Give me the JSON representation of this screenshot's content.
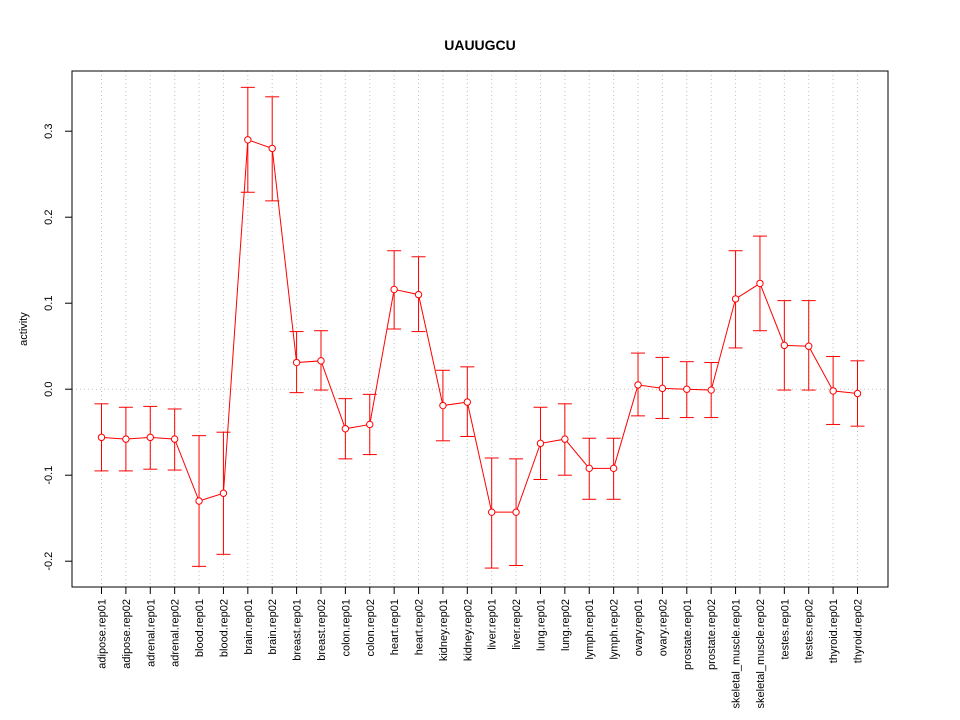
{
  "chart_data": {
    "type": "line",
    "title": "UAUUGCU",
    "xlabel": "",
    "ylabel": "activity",
    "ylim": [
      -0.23,
      0.37
    ],
    "y_ticks": [
      -0.2,
      -0.1,
      0.0,
      0.1,
      0.2,
      0.3
    ],
    "y_tick_labels": [
      "-0.2",
      "-0.1",
      "0.0",
      "0.1",
      "0.2",
      "0.3"
    ],
    "grid": true,
    "reference_line": 0.0,
    "series_color": "#ff0000",
    "grid_color": "#c0c0c0",
    "categories": [
      "adipose.rep01",
      "adipose.rep02",
      "adrenal.rep01",
      "adrenal.rep02",
      "blood.rep01",
      "blood.rep02",
      "brain.rep01",
      "brain.rep02",
      "breast.rep01",
      "breast.rep02",
      "colon.rep01",
      "colon.rep02",
      "heart.rep01",
      "heart.rep02",
      "kidney.rep01",
      "kidney.rep02",
      "liver.rep01",
      "liver.rep02",
      "lung.rep01",
      "lung.rep02",
      "lymph.rep01",
      "lymph.rep02",
      "ovary.rep01",
      "ovary.rep02",
      "prostate.rep01",
      "prostate.rep02",
      "skeletal_muscle.rep01",
      "skeletal_muscle.rep02",
      "testes.rep01",
      "testes.rep02",
      "thyroid.rep01",
      "thyroid.rep02"
    ],
    "values": [
      -0.056,
      -0.058,
      -0.056,
      -0.058,
      -0.13,
      -0.121,
      0.29,
      0.28,
      0.031,
      0.033,
      -0.046,
      -0.041,
      0.116,
      0.11,
      -0.019,
      -0.015,
      -0.143,
      -0.143,
      -0.063,
      -0.058,
      -0.092,
      -0.092,
      0.005,
      0.001,
      0.0,
      -0.001,
      0.105,
      0.123,
      0.051,
      0.05,
      -0.002,
      -0.005
    ],
    "lower": [
      -0.095,
      -0.095,
      -0.093,
      -0.094,
      -0.206,
      -0.192,
      0.229,
      0.219,
      -0.004,
      -0.001,
      -0.081,
      -0.076,
      0.07,
      0.067,
      -0.06,
      -0.055,
      -0.208,
      -0.205,
      -0.105,
      -0.1,
      -0.128,
      -0.128,
      -0.031,
      -0.034,
      -0.033,
      -0.033,
      0.048,
      0.068,
      -0.001,
      -0.001,
      -0.041,
      -0.043
    ],
    "upper": [
      -0.017,
      -0.021,
      -0.02,
      -0.023,
      -0.054,
      -0.05,
      0.351,
      0.34,
      0.067,
      0.068,
      -0.011,
      -0.006,
      0.161,
      0.154,
      0.022,
      0.026,
      -0.08,
      -0.081,
      -0.021,
      -0.017,
      -0.057,
      -0.057,
      0.042,
      0.037,
      0.032,
      0.031,
      0.161,
      0.178,
      0.103,
      0.103,
      0.038,
      0.033
    ]
  }
}
